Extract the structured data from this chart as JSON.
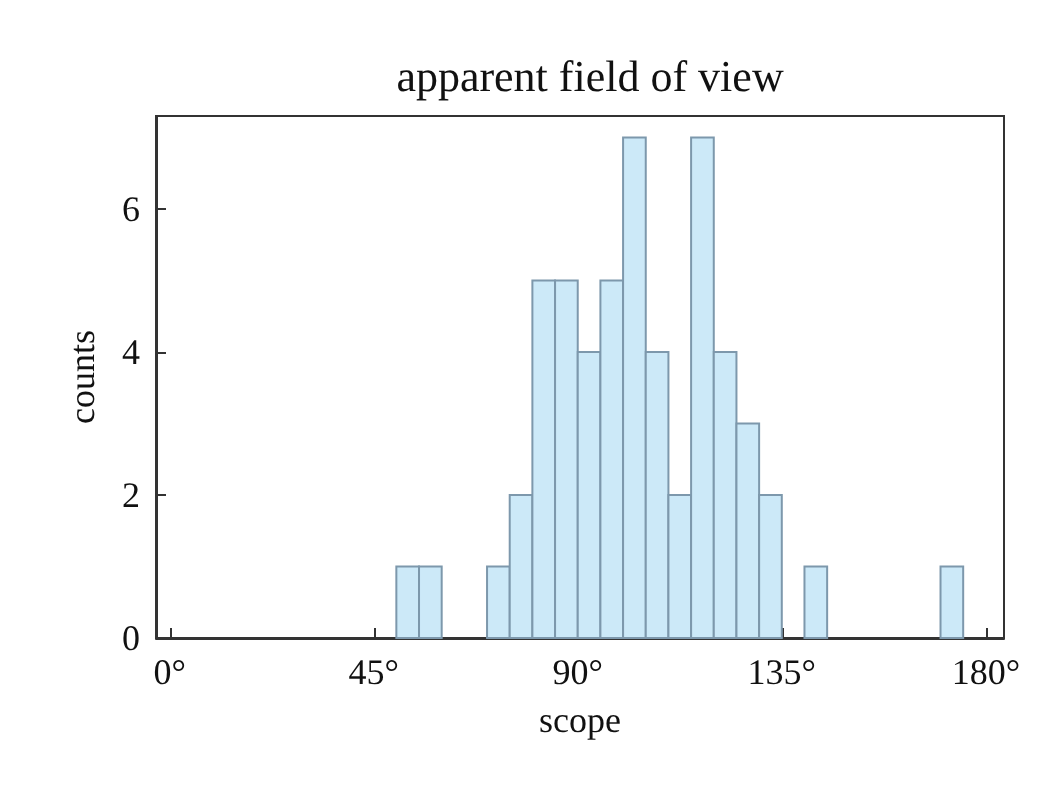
{
  "chart_data": {
    "type": "histogram",
    "title": "apparent field of view",
    "xlabel": "scope",
    "ylabel": "counts",
    "bins": [
      50,
      55,
      60,
      65,
      70,
      75,
      80,
      85,
      90,
      95,
      100,
      105,
      110,
      115,
      120,
      125,
      130,
      135,
      140,
      145,
      150,
      155,
      160,
      165,
      170,
      175
    ],
    "values": [
      1,
      1,
      0,
      0,
      1,
      2,
      5,
      5,
      4,
      5,
      7,
      4,
      2,
      7,
      4,
      3,
      2,
      0,
      1,
      0,
      0,
      0,
      0,
      0,
      1
    ],
    "color": "#cce9f8",
    "xlim": [
      -3,
      184
    ],
    "ylim": [
      0,
      7.3
    ],
    "xticks": [
      {
        "value": 0,
        "label": "0°"
      },
      {
        "value": 45,
        "label": "45°"
      },
      {
        "value": 90,
        "label": "90°"
      },
      {
        "value": 135,
        "label": "135°"
      },
      {
        "value": 180,
        "label": "180°"
      }
    ],
    "yticks": [
      0,
      2,
      4,
      6
    ],
    "grid": false
  }
}
